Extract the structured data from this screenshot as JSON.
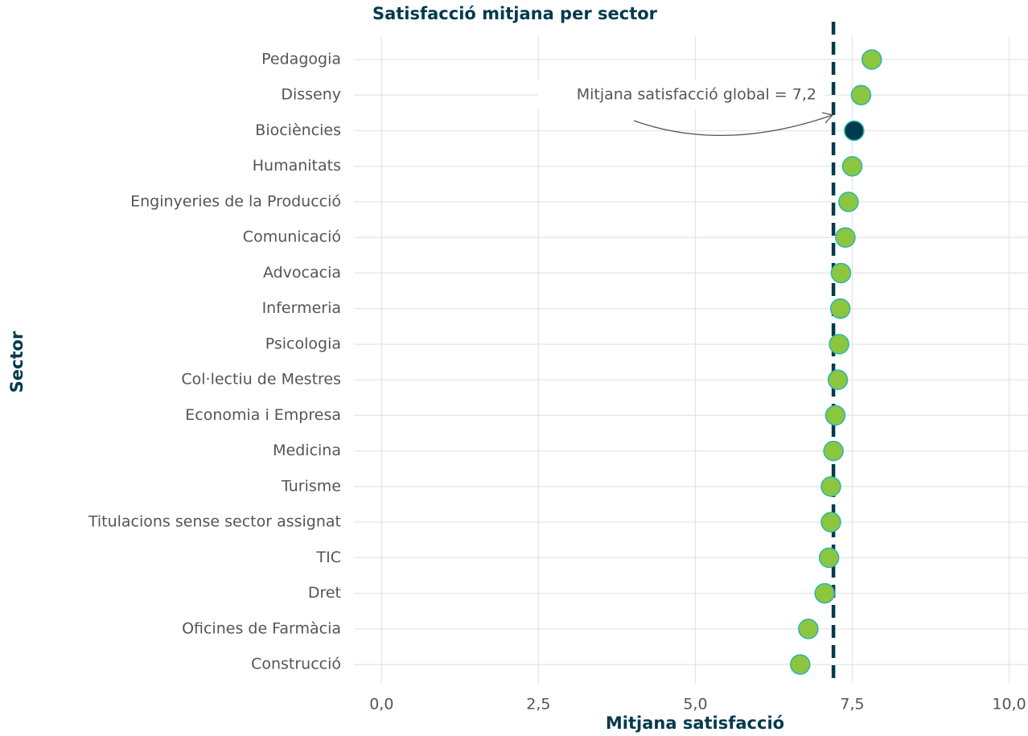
{
  "chart_data": {
    "type": "dot",
    "title": "Satisfacció mitjana per sector",
    "x_label": "Mitjana satisfacció",
    "y_label": "Sector",
    "categories": [
      "Pedagogia",
      "Disseny",
      "Biociències",
      "Humanitats",
      "Enginyeries de la Producció",
      "Comunicació",
      "Advocacia",
      "Infermeria",
      "Psicologia",
      "Col·lectiu de Mestres",
      "Economia i Empresa",
      "Medicina",
      "Turisme",
      "Titulacions sense sector assignat",
      "TIC",
      "Dret",
      "Oficines de Farmàcia",
      "Construcció"
    ],
    "values": [
      7.81,
      7.64,
      7.53,
      7.5,
      7.44,
      7.39,
      7.32,
      7.31,
      7.29,
      7.27,
      7.23,
      7.2,
      7.16,
      7.16,
      7.13,
      7.06,
      6.8,
      6.67
    ],
    "point_colors": [
      "#8cc63f",
      "#8cc63f",
      "#003a4d",
      "#8cc63f",
      "#8cc63f",
      "#8cc63f",
      "#8cc63f",
      "#8cc63f",
      "#8cc63f",
      "#8cc63f",
      "#8cc63f",
      "#8cc63f",
      "#8cc63f",
      "#8cc63f",
      "#8cc63f",
      "#8cc63f",
      "#8cc63f",
      "#8cc63f"
    ],
    "outline_color": "#2bb5b0",
    "mean_line": {
      "value": 7.2,
      "label": "Mitjana satisfacció global = 7,2",
      "color": "#003a4d"
    },
    "xlim": [
      -0.44,
      10.3
    ],
    "xticks": [
      {
        "value": 0,
        "label": "0,0"
      },
      {
        "value": 2.5,
        "label": "2,5"
      },
      {
        "value": 5,
        "label": "5,0"
      },
      {
        "value": 7.5,
        "label": "7,5"
      },
      {
        "value": 10,
        "label": "10,0"
      }
    ],
    "grid": true
  }
}
